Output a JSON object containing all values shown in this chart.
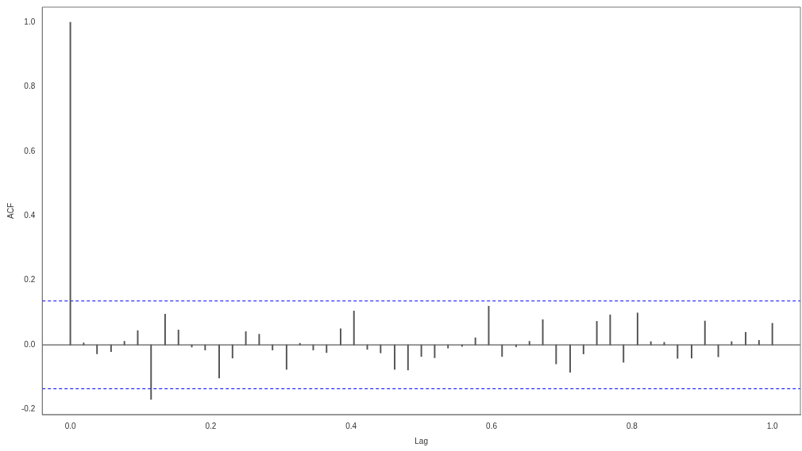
{
  "chart_data": {
    "type": "bar",
    "xlabel": "Lag",
    "ylabel": "ACF",
    "x": [
      0,
      0.019,
      0.038,
      0.058,
      0.077,
      0.096,
      0.115,
      0.135,
      0.154,
      0.173,
      0.192,
      0.212,
      0.231,
      0.25,
      0.269,
      0.288,
      0.308,
      0.327,
      0.346,
      0.365,
      0.385,
      0.404,
      0.423,
      0.442,
      0.462,
      0.481,
      0.5,
      0.519,
      0.538,
      0.558,
      0.577,
      0.596,
      0.615,
      0.635,
      0.654,
      0.673,
      0.692,
      0.712,
      0.731,
      0.75,
      0.769,
      0.788,
      0.808,
      0.827,
      0.846,
      0.865,
      0.885,
      0.904,
      0.923,
      0.942,
      0.962,
      0.981,
      1
    ],
    "values": [
      1,
      0.006,
      -0.028,
      -0.021,
      0.011,
      0.044,
      -0.169,
      0.095,
      0.046,
      -0.007,
      -0.016,
      -0.103,
      -0.041,
      0.041,
      0.033,
      -0.016,
      -0.076,
      0.005,
      -0.016,
      -0.024,
      0.05,
      0.105,
      -0.014,
      -0.025,
      -0.076,
      -0.078,
      -0.036,
      -0.04,
      -0.01,
      -0.005,
      0.022,
      0.12,
      -0.036,
      -0.006,
      0.011,
      0.078,
      -0.059,
      -0.085,
      -0.028,
      0.073,
      0.093,
      -0.054,
      0.099,
      0.01,
      0.008,
      -0.042,
      -0.041,
      0.074,
      -0.037,
      0.01,
      0.039,
      0.014,
      0.067
    ],
    "color": "#555555",
    "xlim": [
      -0.04,
      1.04
    ],
    "ylim": [
      -0.216,
      1.047
    ],
    "xticks": [
      {
        "value": 0,
        "label": "0.0"
      },
      {
        "value": 0.2,
        "label": "0.2"
      },
      {
        "value": 0.4,
        "label": "0.4"
      },
      {
        "value": 0.6,
        "label": "0.6"
      },
      {
        "value": 0.8,
        "label": "0.8"
      },
      {
        "value": 1,
        "label": "1.0"
      }
    ],
    "yticks": [
      {
        "value": -0.2,
        "label": "-0.2"
      },
      {
        "value": 0,
        "label": "0.0"
      },
      {
        "value": 0.2,
        "label": "0.2"
      },
      {
        "value": 0.4,
        "label": "0.4"
      },
      {
        "value": 0.6,
        "label": "0.6"
      },
      {
        "value": 0.8,
        "label": "0.8"
      },
      {
        "value": 1,
        "label": "1.0"
      }
    ],
    "ref_lines": [
      {
        "axis": "y",
        "value": 0,
        "color": "#333333",
        "line_style": "solid"
      },
      {
        "axis": "y",
        "value": 0.136,
        "color": "#0000ff",
        "line_style": "dashed"
      },
      {
        "axis": "y",
        "value": -0.136,
        "color": "#0000ff",
        "line_style": "dashed"
      }
    ],
    "grid": false,
    "legend": false
  }
}
